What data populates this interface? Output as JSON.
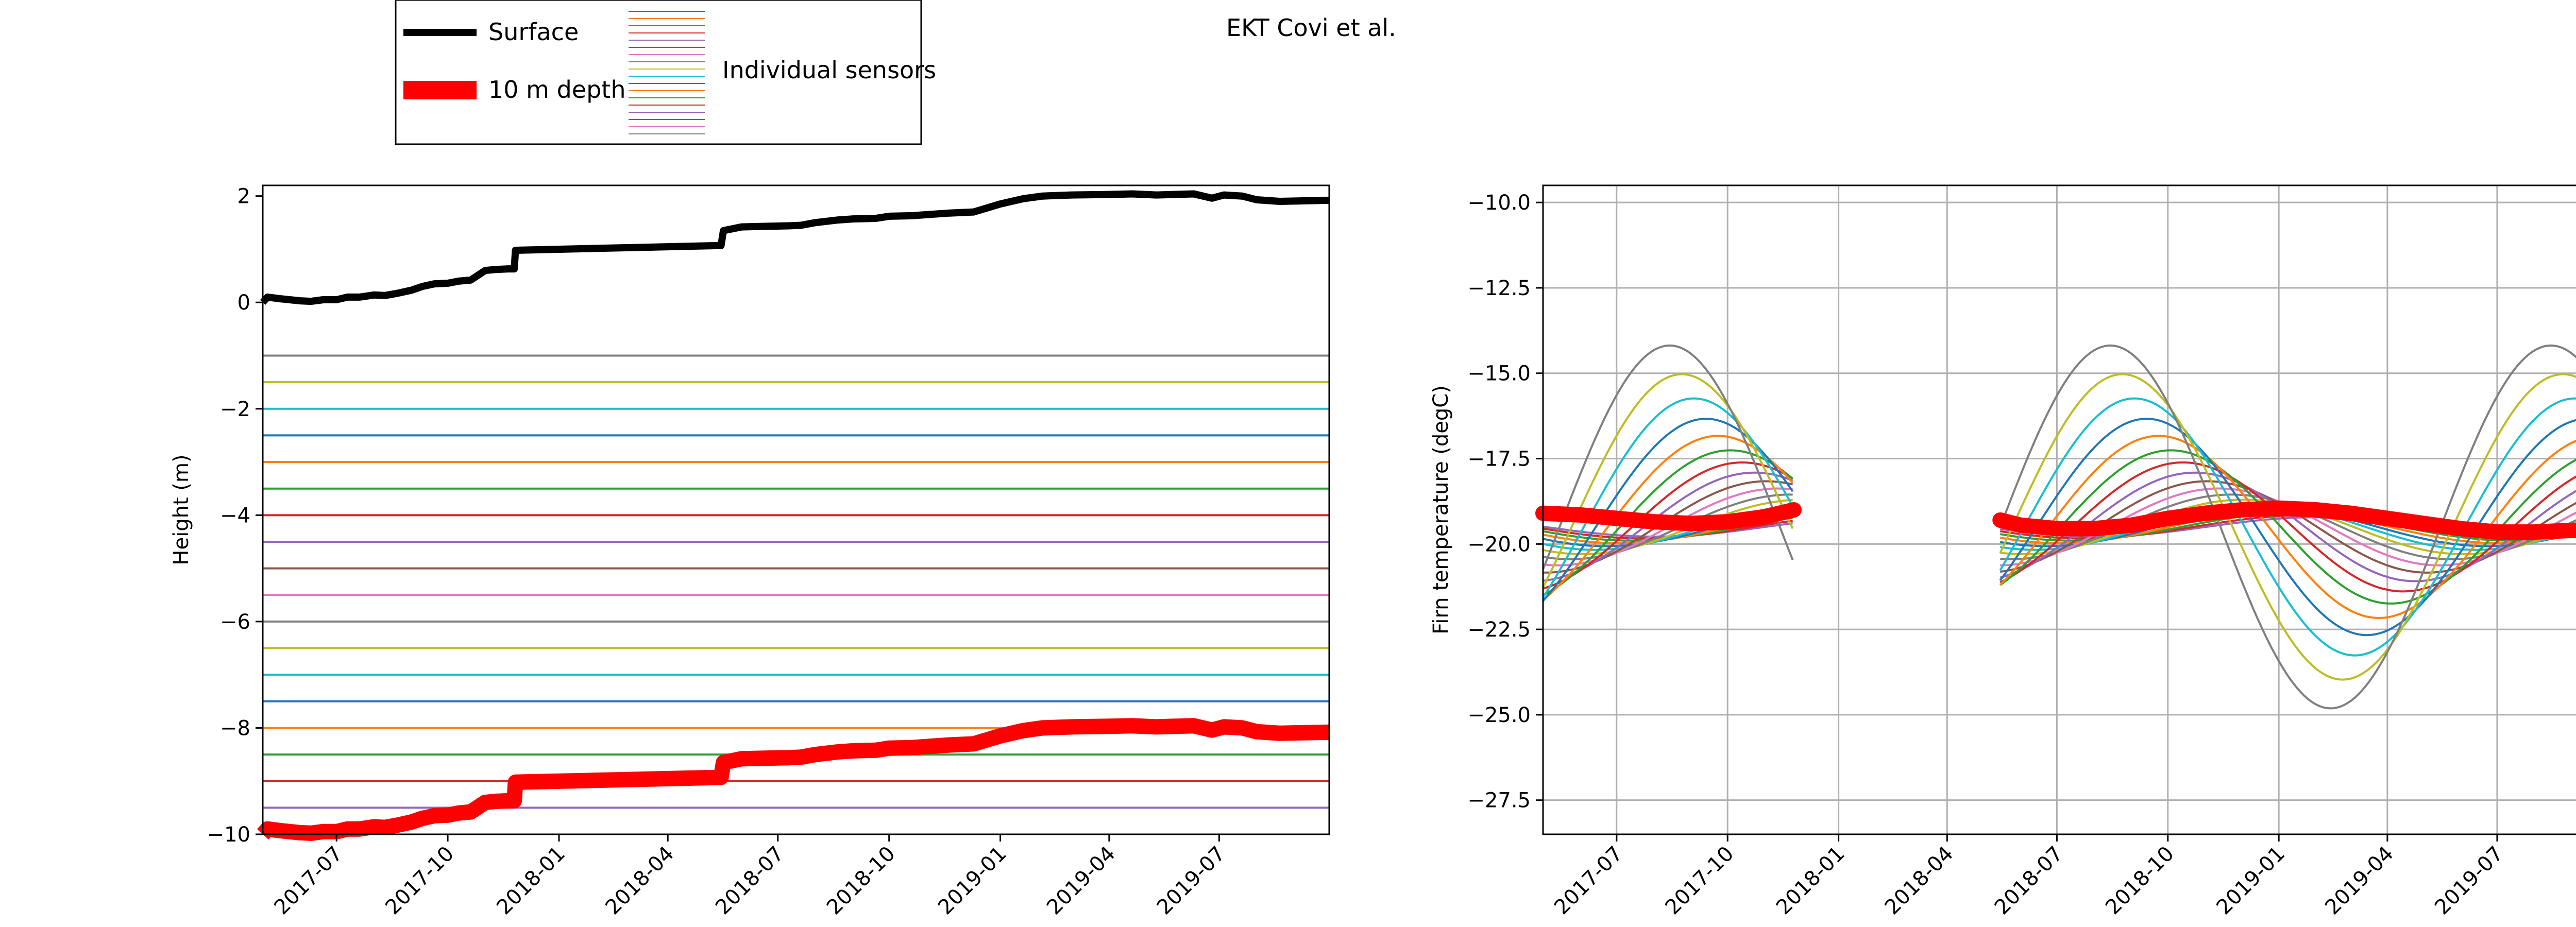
{
  "figure": {
    "title": "EKT Covi et al."
  },
  "legend": {
    "surface_label": "Surface",
    "depth_label": "10 m depth",
    "sensors_label": "Individual sensors"
  },
  "colors": {
    "surface": "#000000",
    "depth10m": "#ff0000",
    "sensor_cycle": [
      "#1f77b4",
      "#ff7f0e",
      "#2ca02c",
      "#d62728",
      "#9467bd",
      "#8c564b",
      "#e377c2",
      "#7f7f7f",
      "#bcbd22",
      "#17becf"
    ]
  },
  "chart_data": [
    {
      "type": "line",
      "ylabel": "Height (m)",
      "xlabel": "",
      "xlim": [
        "2017-05-01",
        "2019-09-30"
      ],
      "ylim": [
        -10,
        2.2
      ],
      "x_ticks": [
        "2017-07",
        "2017-10",
        "2018-01",
        "2018-04",
        "2018-07",
        "2018-10",
        "2019-01",
        "2019-04",
        "2019-07"
      ],
      "y_ticks": [
        2,
        0,
        -2,
        -4,
        -6,
        -8,
        -10
      ],
      "grid": false,
      "series": [
        {
          "name": "Surface",
          "color": "#000000",
          "x": [
            "2017-05-01",
            "2017-05-05",
            "2017-05-15",
            "2017-06-01",
            "2017-06-10",
            "2017-06-20",
            "2017-07-01",
            "2017-07-10",
            "2017-07-20",
            "2017-08-01",
            "2017-08-10",
            "2017-08-20",
            "2017-09-01",
            "2017-09-10",
            "2017-09-20",
            "2017-10-01",
            "2017-10-10",
            "2017-10-20",
            "2017-11-01",
            "2017-11-10",
            "2017-11-20",
            "2017-11-25",
            "2017-11-26",
            "2018-05-15",
            "2018-05-17",
            "2018-06-01",
            "2018-06-20",
            "2018-07-10",
            "2018-07-20",
            "2018-08-01",
            "2018-08-20",
            "2018-09-01",
            "2018-09-20",
            "2018-10-01",
            "2018-10-20",
            "2018-11-01",
            "2018-11-20",
            "2018-12-10",
            "2019-01-01",
            "2019-01-20",
            "2019-02-05",
            "2019-03-01",
            "2019-04-01",
            "2019-04-20",
            "2019-05-10",
            "2019-05-25",
            "2019-06-10",
            "2019-06-25",
            "2019-07-05",
            "2019-07-20",
            "2019-08-01",
            "2019-08-20",
            "2019-09-30"
          ],
          "values": [
            0.0,
            0.1,
            0.07,
            0.03,
            0.02,
            0.05,
            0.05,
            0.1,
            0.1,
            0.14,
            0.13,
            0.17,
            0.23,
            0.3,
            0.35,
            0.36,
            0.4,
            0.42,
            0.6,
            0.62,
            0.63,
            0.63,
            0.98,
            1.07,
            1.35,
            1.42,
            1.43,
            1.44,
            1.45,
            1.5,
            1.55,
            1.57,
            1.58,
            1.62,
            1.63,
            1.65,
            1.68,
            1.7,
            1.85,
            1.95,
            2.0,
            2.02,
            2.03,
            2.04,
            2.02,
            2.03,
            2.04,
            1.96,
            2.02,
            2.0,
            1.93,
            1.9,
            1.92
          ]
        },
        {
          "name": "10 m depth",
          "color": "#ff0000",
          "x": [
            "2017-05-01",
            "2017-05-05",
            "2017-05-15",
            "2017-06-01",
            "2017-06-10",
            "2017-06-20",
            "2017-07-01",
            "2017-07-10",
            "2017-07-20",
            "2017-08-01",
            "2017-08-10",
            "2017-08-20",
            "2017-09-01",
            "2017-09-10",
            "2017-09-20",
            "2017-10-01",
            "2017-10-10",
            "2017-10-20",
            "2017-11-01",
            "2017-11-10",
            "2017-11-20",
            "2017-11-25",
            "2017-11-26",
            "2018-05-15",
            "2018-05-17",
            "2018-06-01",
            "2018-06-20",
            "2018-07-10",
            "2018-07-20",
            "2018-08-01",
            "2018-08-20",
            "2018-09-01",
            "2018-09-20",
            "2018-10-01",
            "2018-10-20",
            "2018-11-01",
            "2018-11-20",
            "2018-12-10",
            "2019-01-01",
            "2019-01-20",
            "2019-02-05",
            "2019-03-01",
            "2019-04-01",
            "2019-04-20",
            "2019-05-10",
            "2019-05-25",
            "2019-06-10",
            "2019-06-25",
            "2019-07-05",
            "2019-07-20",
            "2019-08-01",
            "2019-08-20",
            "2019-09-30"
          ],
          "values": [
            -10.0,
            -9.9,
            -9.93,
            -9.97,
            -9.98,
            -9.95,
            -9.95,
            -9.9,
            -9.9,
            -9.86,
            -9.87,
            -9.83,
            -9.77,
            -9.7,
            -9.65,
            -9.64,
            -9.6,
            -9.58,
            -9.4,
            -9.38,
            -9.37,
            -9.37,
            -9.02,
            -8.93,
            -8.65,
            -8.58,
            -8.57,
            -8.56,
            -8.55,
            -8.5,
            -8.45,
            -8.43,
            -8.42,
            -8.38,
            -8.37,
            -8.35,
            -8.32,
            -8.3,
            -8.15,
            -8.05,
            -8.0,
            -7.98,
            -7.97,
            -7.96,
            -7.98,
            -7.97,
            -7.96,
            -8.04,
            -7.98,
            -8.0,
            -8.07,
            -8.1,
            -8.08
          ]
        }
      ],
      "sensor_depths": [
        -1.0,
        -1.5,
        -2.0,
        -2.5,
        -3.0,
        -3.5,
        -4.0,
        -4.5,
        -5.0,
        -5.5,
        -6.0,
        -6.5,
        -7.0,
        -7.5,
        -8.0,
        -8.5,
        -9.0,
        -9.5
      ]
    },
    {
      "type": "line",
      "ylabel": "Firn temperature (degC)",
      "xlabel": "",
      "xlim": [
        "2017-05-01",
        "2019-09-30"
      ],
      "ylim": [
        -28.5,
        -9.5
      ],
      "x_ticks": [
        "2017-07",
        "2017-10",
        "2018-01",
        "2018-04",
        "2018-07",
        "2018-10",
        "2019-01",
        "2019-04",
        "2019-07"
      ],
      "y_ticks": [
        -10.0,
        -12.5,
        -15.0,
        -17.5,
        -20.0,
        -22.5,
        -25.0,
        -27.5
      ],
      "grid": true,
      "data_gap": [
        "2017-11-25",
        "2018-05-15"
      ],
      "sensor_profiles": {
        "depths_m": [
          1.0,
          1.5,
          2.0,
          2.5,
          3.0,
          3.5,
          4.0,
          4.5,
          5.0,
          5.5,
          6.0,
          6.5,
          7.0,
          7.5,
          8.0,
          8.5,
          9.0,
          9.5
        ],
        "annual_mean_degC": -19.5,
        "surface_amplitude_degC": 7.5,
        "damping_depth_m": 2.9,
        "peak_date": "2017-07-25",
        "period_days": 365.25
      },
      "series": [
        {
          "name": "10 m depth",
          "color": "#ff0000",
          "x": [
            "2017-05-01",
            "2017-06-01",
            "2017-07-01",
            "2017-08-01",
            "2017-09-01",
            "2017-10-01",
            "2017-11-01",
            "2017-11-25",
            "2018-05-15",
            "2018-06-01",
            "2018-07-01",
            "2018-08-01",
            "2018-09-01",
            "2018-10-01",
            "2018-11-01",
            "2018-12-01",
            "2019-01-01",
            "2019-02-01",
            "2019-03-01",
            "2019-04-01",
            "2019-05-01",
            "2019-06-01",
            "2019-07-01",
            "2019-08-01",
            "2019-09-01",
            "2019-09-30"
          ],
          "values": [
            -19.1,
            -19.15,
            -19.25,
            -19.35,
            -19.4,
            -19.35,
            -19.2,
            -19.0,
            -19.3,
            -19.45,
            -19.55,
            -19.55,
            -19.45,
            -19.25,
            -19.1,
            -19.0,
            -18.95,
            -19.0,
            -19.1,
            -19.25,
            -19.4,
            -19.55,
            -19.65,
            -19.65,
            -19.6,
            -19.55
          ]
        }
      ]
    }
  ]
}
